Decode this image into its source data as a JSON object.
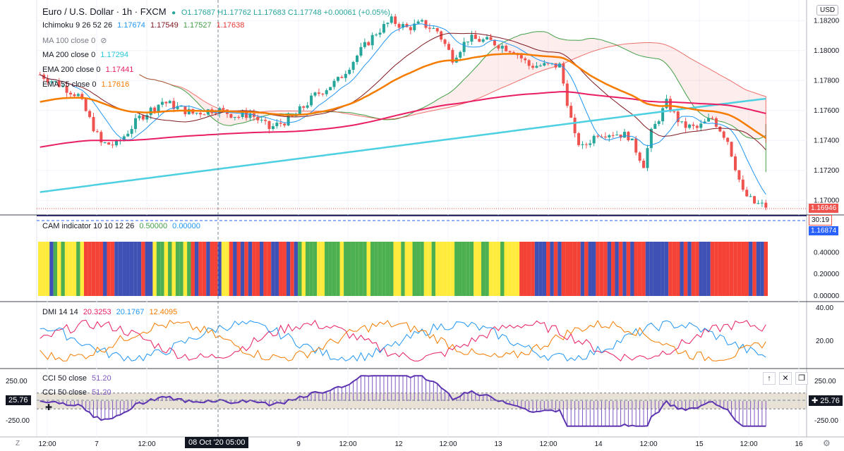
{
  "symbol": {
    "title": "Euro / U.S. Dollar · 1h · FXCM",
    "ohlc": "O1.17687  H1.17762  L1.17683  C1.17748  +0.00061 (+0.05%)",
    "currency": "USD"
  },
  "legend": {
    "ichimoku": {
      "name": "Ichimoku 9 26 52 26",
      "v1": "1.17674",
      "v2": "1.17549",
      "v3": "1.17527",
      "v4": "1.17638"
    },
    "ma100": {
      "name": "MA 100 close 0"
    },
    "ma200": {
      "name": "MA 200 close 0",
      "v": "1.17294"
    },
    "ema200": {
      "name": "EMA 200 close 0",
      "v": "1.17441"
    },
    "ema55": {
      "name": "EMA 55 close 0",
      "v": "1.17616"
    }
  },
  "price_axis": {
    "ticks": [
      "1.18200",
      "1.18000",
      "1.17800",
      "1.17600",
      "1.17400",
      "1.17200",
      "1.17000"
    ],
    "last_price": "1.16946",
    "countdown": "30:19",
    "line_price": "1.16874"
  },
  "cam": {
    "name": "CAM indicator 10 10 12 26",
    "v1": "0.50000",
    "v2": "0.00000",
    "ticks": [
      "0.40000",
      "0.20000",
      "0.00000"
    ]
  },
  "dmi": {
    "name": "DMI 14 14",
    "v1": "20.3253",
    "v2": "20.1767",
    "v3": "12.4095",
    "ticks": [
      "40.00",
      "20.00"
    ]
  },
  "cci": {
    "name1": "CCI 50 close",
    "v1": "51.20",
    "name2": "CCI 50 close",
    "v2": "51.20",
    "left_ticks": [
      "250.00",
      "-250.00"
    ],
    "right_ticks": [
      "250.00",
      "-250.00"
    ],
    "crosshair_left": "25.76",
    "crosshair_right": "25.76"
  },
  "time_axis": {
    "labels": [
      "12:00",
      "7",
      "12:00",
      "9",
      "12:00",
      "12",
      "12:00",
      "13",
      "12:00",
      "14",
      "12:00",
      "15",
      "12:00",
      "16"
    ],
    "crosshair": "08 Oct '20  05:00"
  },
  "colors": {
    "up": "#26a69a",
    "down": "#ef5350",
    "ema55": "#f57c00",
    "ema200": "#e91e63",
    "ma200": "#4dd0e1",
    "cam_green": "#4caf50",
    "cam_yellow": "#ffeb3b",
    "cam_red": "#f44336",
    "cam_blue": "#3f51b5"
  },
  "icons": [
    "eye-slash-icon",
    "arrow-up-icon",
    "close-icon",
    "restore-icon",
    "plus-icon",
    "timezone-icon",
    "settings-icon"
  ]
}
